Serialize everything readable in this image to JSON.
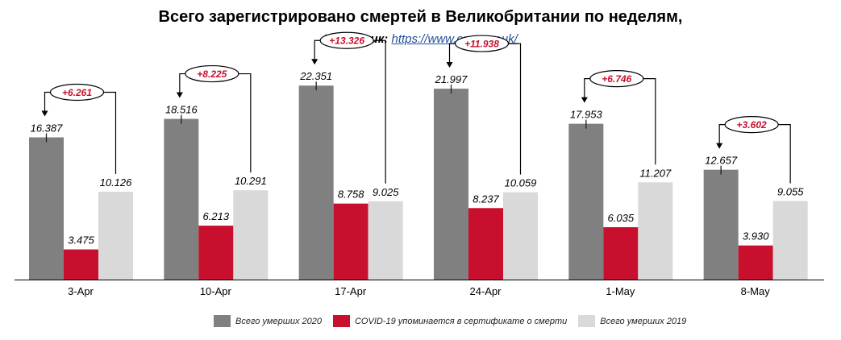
{
  "header": {
    "title": "Всего зарегистрировано смертей в Великобритании по неделям,",
    "source_label": "Источник:",
    "source_url": "https://www.ons.gov.uk/"
  },
  "colors": {
    "total_2020": "#808080",
    "covid": "#c8102e",
    "total_2019": "#d9d9d9",
    "annotation": "#c8102e"
  },
  "chart_data": {
    "type": "bar",
    "categories": [
      "3-Apr",
      "10-Apr",
      "17-Apr",
      "24-Apr",
      "1-May",
      "8-May"
    ],
    "series": [
      {
        "name": "Всего умерших 2020",
        "values": [
          16387,
          18516,
          22351,
          21997,
          17953,
          12657
        ],
        "labels": [
          "16.387",
          "18.516",
          "22.351",
          "21.997",
          "17.953",
          "12.657"
        ]
      },
      {
        "name": "COVID-19 упоминается в сертификате о смерти",
        "values": [
          3475,
          6213,
          8758,
          8237,
          6035,
          3930
        ],
        "labels": [
          "3.475",
          "6.213",
          "8.758",
          "8.237",
          "6.035",
          "3.930"
        ]
      },
      {
        "name": "Всего умерших 2019",
        "values": [
          10126,
          10291,
          9025,
          10059,
          11207,
          9055
        ],
        "labels": [
          "10.126",
          "10.291",
          "9.025",
          "10.059",
          "11.207",
          "9.055"
        ]
      }
    ],
    "annotations": [
      "+6.261",
      "+8.225",
      "+13.326",
      "+11.938",
      "+6.746",
      "+3.602"
    ],
    "ylim": [
      0,
      28500
    ],
    "grid": false,
    "legend_position": "bottom"
  }
}
